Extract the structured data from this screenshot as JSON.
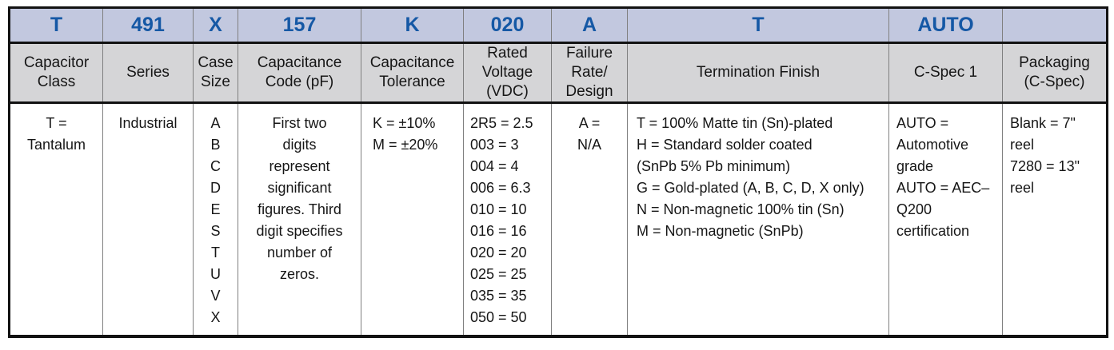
{
  "colors": {
    "codeBg": "#c2c8df",
    "codeText": "#1558a5",
    "headerBg": "#d5d5d7",
    "gridLine": "#808080",
    "frame": "#121212",
    "bodyText": "#161616"
  },
  "table": {
    "columns": [
      {
        "code": "T",
        "label": "Capacitor Class",
        "body": {
          "lines": [
            "T =",
            "Tantalum"
          ]
        }
      },
      {
        "code": "491",
        "label": "Series",
        "body": {
          "lines": [
            "Industrial"
          ]
        }
      },
      {
        "code": "X",
        "label": "Case Size",
        "body": {
          "lines": [
            "A",
            "B",
            "C",
            "D",
            "E",
            "S",
            "T",
            "U",
            "V",
            "X"
          ]
        }
      },
      {
        "code": "157",
        "label": "Capacitance Code (pF)",
        "body": {
          "lines": [
            "First two",
            "digits",
            "represent",
            "significant",
            "figures. Third",
            "digit specifies",
            "number of",
            "zeros."
          ]
        }
      },
      {
        "code": "K",
        "label": "Capacitance Tolerance",
        "body": {
          "lines": [
            "K = ±10%",
            "M = ±20%"
          ]
        }
      },
      {
        "code": "020",
        "label": "Rated Voltage (VDC)",
        "body": {
          "lines": [
            "2R5 = 2.5",
            "003 = 3",
            "004 = 4",
            "006 = 6.3",
            "010 = 10",
            "016 = 16",
            "020 = 20",
            "025 = 25",
            "035 = 35",
            "050 = 50"
          ]
        }
      },
      {
        "code": "A",
        "label": "Failure Rate/​Design",
        "body": {
          "lines": [
            "A =",
            "N/A"
          ]
        }
      },
      {
        "code": "T",
        "label": "Termination Finish",
        "body": {
          "lines": [
            "T = 100% Matte tin (Sn)-plated",
            "H = Standard solder coated",
            "(SnPb 5% Pb minimum)",
            "G = Gold-plated (A, B, C, D, X only)",
            "N = Non-magnetic 100% tin (Sn)",
            "M = Non-magnetic (SnPb)"
          ]
        }
      },
      {
        "code": "AUTO",
        "label": "C-Spec 1",
        "body": {
          "lines": [
            "AUTO = Automotive grade",
            "AUTO = AEC–Q200 certification"
          ]
        }
      },
      {
        "code": "",
        "label": "Packaging (C-Spec)",
        "body": {
          "lines": [
            "Blank = 7\" reel",
            "7280 = 13\" reel"
          ]
        }
      }
    ]
  }
}
